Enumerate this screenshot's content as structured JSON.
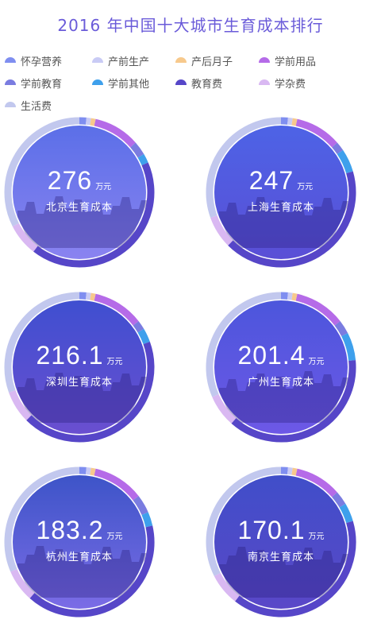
{
  "title": "2016 年中国十大城市生育成本排行",
  "legend": [
    {
      "label": "怀孕营养",
      "color": "#7f8ef0"
    },
    {
      "label": "产前生产",
      "color": "#c9cbf5"
    },
    {
      "label": "产后月子",
      "color": "#f7c98c"
    },
    {
      "label": "学前用品",
      "color": "#b56be8"
    },
    {
      "label": "学前教育",
      "color": "#7a7ce0"
    },
    {
      "label": "学前其他",
      "color": "#3ea0ec"
    },
    {
      "label": "教育费",
      "color": "#5646c8"
    },
    {
      "label": "学杂费",
      "color": "#d9b8f2"
    },
    {
      "label": "生活费",
      "color": "#c2c8ee"
    }
  ],
  "unit": "万元",
  "chart_data": {
    "type": "pie",
    "title": "2016 年中国十大城市生育成本排行",
    "unit": "万元",
    "categories": [
      "怀孕营养",
      "产前生产",
      "产后月子",
      "学前用品",
      "学前教育",
      "学前其他",
      "教育费",
      "学杂费",
      "生活费"
    ],
    "cities": [
      {
        "name": "北京生育成本",
        "value": "276",
        "shares": [
          1.5,
          1.0,
          1.0,
          10,
          3,
          2,
          42,
          7,
          32.5
        ]
      },
      {
        "name": "上海生育成本",
        "value": "247",
        "shares": [
          1.5,
          1.0,
          1.0,
          10,
          2,
          5,
          42,
          7,
          30.5
        ]
      },
      {
        "name": "深圳生育成本",
        "value": "216.1",
        "shares": [
          1.5,
          1.0,
          1.0,
          11,
          2,
          3,
          43,
          7,
          30.5
        ]
      },
      {
        "name": "广州生育成本",
        "value": "201.4",
        "shares": [
          1.5,
          1.0,
          1.0,
          11,
          3,
          6,
          38,
          7,
          31.5
        ]
      },
      {
        "name": "杭州生育成本",
        "value": "183.2",
        "shares": [
          1.5,
          1.0,
          1.0,
          11,
          4,
          3,
          40,
          7,
          31.5
        ]
      },
      {
        "name": "南京生育成本",
        "value": "170.1",
        "shares": [
          1.5,
          1.0,
          1.0,
          10,
          3,
          4,
          40,
          7,
          32.5
        ]
      }
    ]
  }
}
